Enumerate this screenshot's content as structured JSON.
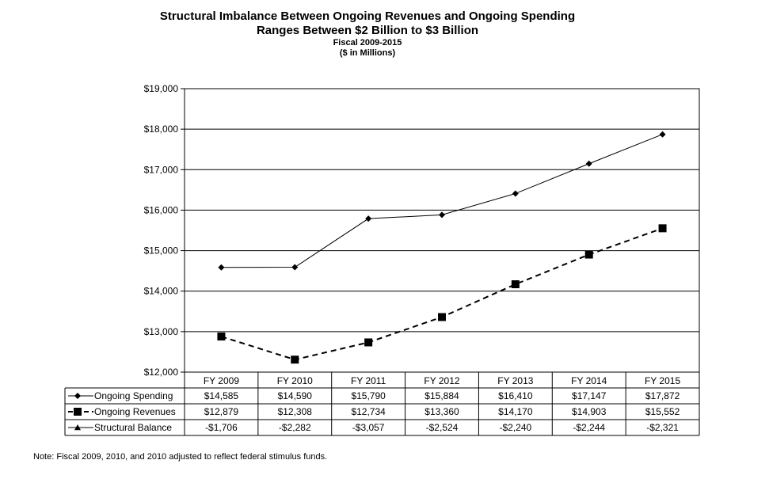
{
  "chart_data": {
    "type": "line",
    "title": "Structural Imbalance Between Ongoing Revenues and Ongoing Spending",
    "subtitle": "Ranges Between $2 Billion to $3 Billion",
    "period": "Fiscal 2009-2015",
    "units": "($ in Millions)",
    "categories": [
      "FY 2009",
      "FY 2010",
      "FY 2011",
      "FY 2012",
      "FY 2013",
      "FY 2014",
      "FY 2015"
    ],
    "ylim": [
      12000,
      19000
    ],
    "yticks": [
      12000,
      13000,
      14000,
      15000,
      16000,
      17000,
      18000,
      19000
    ],
    "ytick_labels": [
      "$12,000",
      "$13,000",
      "$14,000",
      "$15,000",
      "$16,000",
      "$17,000",
      "$18,000",
      "$19,000"
    ],
    "grid": true,
    "series": [
      {
        "name": "Ongoing Spending",
        "marker": "diamond",
        "line_style": "solid",
        "plotted": true,
        "values": [
          14585,
          14590,
          15790,
          15884,
          16410,
          17147,
          17872
        ],
        "labels": [
          "$14,585",
          "$14,590",
          "$15,790",
          "$15,884",
          "$16,410",
          "$17,147",
          "$17,872"
        ]
      },
      {
        "name": "Ongoing Revenues",
        "marker": "square",
        "line_style": "dashed",
        "plotted": true,
        "values": [
          12879,
          12308,
          12734,
          13360,
          14170,
          14903,
          15552
        ],
        "labels": [
          "$12,879",
          "$12,308",
          "$12,734",
          "$13,360",
          "$14,170",
          "$14,903",
          "$15,552"
        ]
      },
      {
        "name": "Structural Balance",
        "marker": "triangle",
        "line_style": "solid",
        "plotted": false,
        "values": [
          -1706,
          -2282,
          -3057,
          -2524,
          -2240,
          -2244,
          -2321
        ],
        "labels": [
          "-$1,706",
          "-$2,282",
          "-$3,057",
          "-$2,524",
          "-$2,240",
          "-$2,244",
          "-$2,321"
        ]
      }
    ]
  },
  "note": "Note:  Fiscal 2009, 2010, and 2010 adjusted to reflect federal stimulus funds.",
  "colors": {
    "line": "#000000",
    "background": "#ffffff"
  }
}
